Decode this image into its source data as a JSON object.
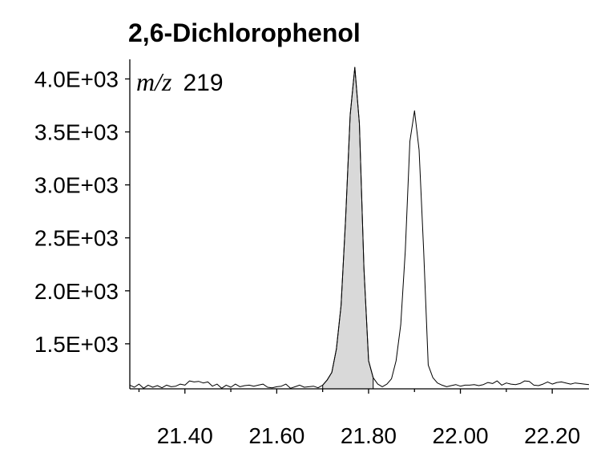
{
  "chart_data": {
    "type": "line",
    "title": "2,6-Dichlorophenol",
    "annotation": {
      "italic": "m/z",
      "text": "219"
    },
    "xlabel": "",
    "ylabel": "",
    "xlim": [
      21.28,
      22.28
    ],
    "ylim": [
      1075,
      4170
    ],
    "x_ticks": [
      21.4,
      21.6,
      21.8,
      22.0,
      22.2
    ],
    "x_tick_labels": [
      "21.40",
      "21.60",
      "21.80",
      "22.00",
      "22.20"
    ],
    "y_ticks": [
      1500,
      2000,
      2500,
      3000,
      3500,
      4000
    ],
    "y_tick_labels": [
      "1.5E+03",
      "2.0E+03",
      "2.5E+03",
      "3.0E+03",
      "3.5E+03",
      "4.0E+03"
    ],
    "shaded_range": [
      21.7,
      21.815
    ],
    "series": [
      {
        "x": [
          21.28,
          21.29,
          21.3,
          21.31,
          21.32,
          21.33,
          21.34,
          21.35,
          21.36,
          21.37,
          21.38,
          21.39,
          21.4,
          21.41,
          21.42,
          21.43,
          21.44,
          21.45,
          21.46,
          21.47,
          21.48,
          21.49,
          21.5,
          21.51,
          21.52,
          21.53,
          21.54,
          21.55,
          21.56,
          21.57,
          21.58,
          21.59,
          21.6,
          21.61,
          21.62,
          21.63,
          21.64,
          21.65,
          21.66,
          21.67,
          21.68,
          21.69,
          21.7,
          21.71,
          21.72,
          21.73,
          21.74,
          21.75,
          21.76,
          21.77,
          21.78,
          21.79,
          21.8,
          21.81,
          21.82,
          21.83,
          21.84,
          21.85,
          21.86,
          21.87,
          21.88,
          21.89,
          21.9,
          21.91,
          21.92,
          21.93,
          21.94,
          21.95,
          21.96,
          21.97,
          21.98,
          21.99,
          22.0,
          22.01,
          22.02,
          22.03,
          22.04,
          22.05,
          22.06,
          22.07,
          22.08,
          22.09,
          22.1,
          22.11,
          22.12,
          22.13,
          22.14,
          22.15,
          22.16,
          22.17,
          22.18,
          22.19,
          22.2,
          22.21,
          22.22,
          22.23,
          22.24,
          22.25,
          22.26,
          22.27,
          22.28
        ],
        "y": [
          1110,
          1090,
          1120,
          1080,
          1110,
          1090,
          1105,
          1085,
          1110,
          1095,
          1100,
          1120,
          1110,
          1150,
          1140,
          1145,
          1130,
          1140,
          1100,
          1120,
          1080,
          1110,
          1090,
          1120,
          1095,
          1105,
          1110,
          1100,
          1110,
          1120,
          1090,
          1085,
          1095,
          1100,
          1120,
          1080,
          1095,
          1110,
          1090,
          1095,
          1100,
          1085,
          1110,
          1160,
          1230,
          1450,
          1860,
          2680,
          3660,
          4110,
          3580,
          2210,
          1340,
          1180,
          1120,
          1095,
          1120,
          1170,
          1340,
          1680,
          2380,
          3410,
          3700,
          3330,
          2380,
          1300,
          1180,
          1130,
          1110,
          1095,
          1105,
          1115,
          1100,
          1110,
          1110,
          1115,
          1105,
          1115,
          1135,
          1125,
          1150,
          1110,
          1130,
          1120,
          1115,
          1125,
          1150,
          1145,
          1110,
          1105,
          1120,
          1140,
          1120,
          1135,
          1140,
          1130,
          1120,
          1130,
          1125,
          1120,
          1115
        ]
      }
    ],
    "grid": false,
    "legend": "none"
  }
}
